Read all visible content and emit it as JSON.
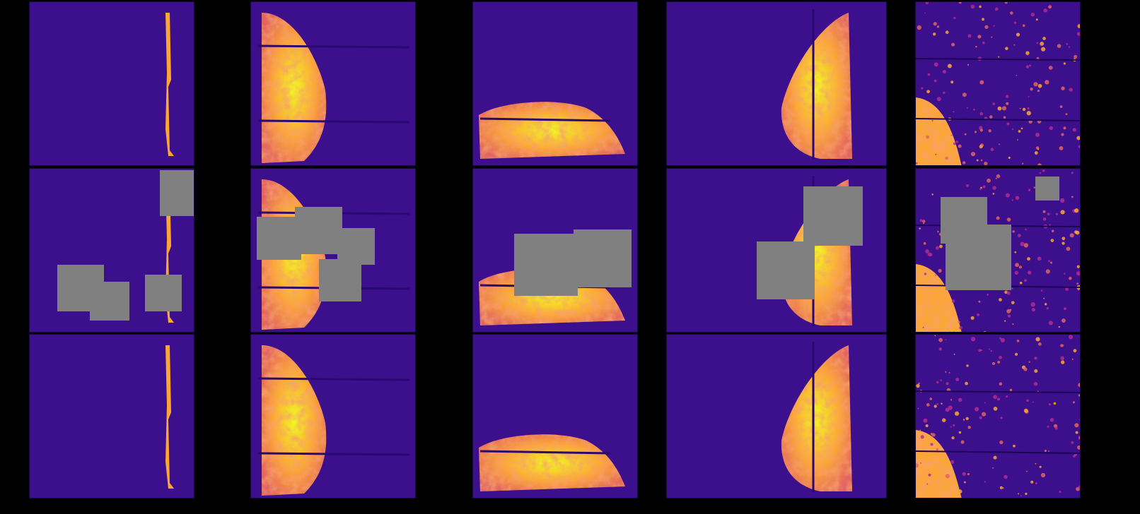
{
  "figure": {
    "background_color": "#000000",
    "colormap": [
      "#0d0887",
      "#3d0f8f",
      "#6a00a8",
      "#b12a90",
      "#e16462",
      "#fca636",
      "#f0f921"
    ],
    "mask_color": "#808080",
    "rows": [
      "original",
      "masked",
      "reconstructed"
    ],
    "columns": [
      {
        "id": "sample-1",
        "shape": "edge-line"
      },
      {
        "id": "sample-2",
        "shape": "left-lobe"
      },
      {
        "id": "sample-3",
        "shape": "bottom-slab"
      },
      {
        "id": "sample-4",
        "shape": "right-lobe"
      },
      {
        "id": "sample-5",
        "shape": "speckle"
      }
    ]
  }
}
